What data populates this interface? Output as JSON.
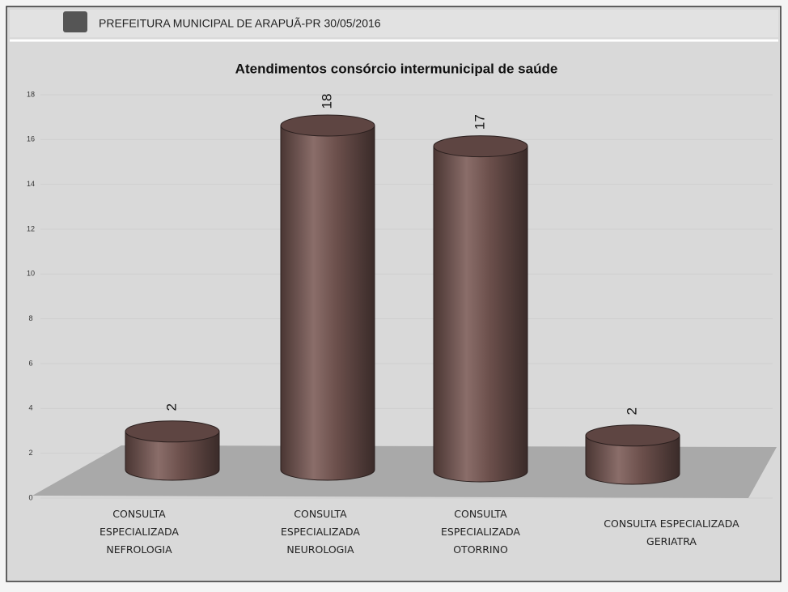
{
  "header": {
    "title": "PREFEITURA MUNICIPAL DE ARAPUÃ-PR 30/05/2016"
  },
  "chart_data": {
    "type": "bar3d",
    "title": "Atendimentos consórcio intermunicipal de saúde",
    "categories": [
      "CONSULTA ESPECIALIZADA NEFROLOGIA",
      "CONSULTA ESPECIALIZADA NEUROLOGIA",
      "CONSULTA ESPECIALIZADA OTORRINO",
      "CONSULTA ESPECIALIZADA GERIATRA"
    ],
    "values": [
      2,
      18,
      17,
      2
    ],
    "color": "#6b4f4b",
    "ylim": [
      0,
      18
    ],
    "yticks": [
      0,
      2,
      4,
      6,
      8,
      10,
      12,
      14,
      16,
      18
    ],
    "grid": true
  }
}
